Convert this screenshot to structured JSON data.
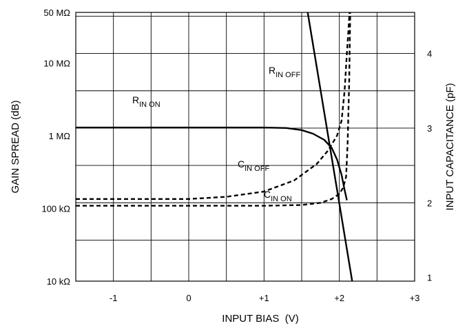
{
  "chart_data": {
    "type": "line",
    "xlabel": "INPUT BIAS  (V)",
    "ylabel_left": "GAIN SPREAD (dB)",
    "ylabel_right": "INPUT CAPACITANCE (pF)",
    "x_ticks": [
      {
        "value": -1,
        "label": "-1"
      },
      {
        "value": 0,
        "label": "0"
      },
      {
        "value": 1,
        "label": "+1"
      },
      {
        "value": 2,
        "label": "+2"
      },
      {
        "value": 3,
        "label": "+3"
      }
    ],
    "xlim": [
      -1.5,
      3.0
    ],
    "y_left_scale": "log",
    "y_left_ticks": [
      {
        "value": 10000,
        "label": "10 kΩ"
      },
      {
        "value": 100000,
        "label": "100 kΩ"
      },
      {
        "value": 1000000,
        "label": "1 MΩ"
      },
      {
        "value": 10000000,
        "label": "10 MΩ"
      },
      {
        "value": 50000000,
        "label": "50 MΩ"
      }
    ],
    "y_left_lim": [
      10000,
      50000000
    ],
    "y_right_ticks": [
      {
        "value": 1,
        "label": "1"
      },
      {
        "value": 2,
        "label": "2"
      },
      {
        "value": 3,
        "label": "3"
      },
      {
        "value": 4,
        "label": "4"
      }
    ],
    "y_right_lim": [
      0.95,
      4.55
    ],
    "grid": true,
    "series": [
      {
        "key": "r_in_on",
        "label_main": "R",
        "label_sub": "IN ON",
        "axis": "left",
        "style": "solid",
        "color": "#000000",
        "x": [
          -1.5,
          0,
          1.0,
          1.3,
          1.5,
          1.65,
          1.8,
          1.9,
          1.97,
          2.03,
          2.07,
          2.1
        ],
        "y": [
          1300000,
          1300000,
          1300000,
          1280000,
          1200000,
          1070000,
          880000,
          680000,
          470000,
          290000,
          180000,
          130000
        ]
      },
      {
        "key": "r_in_off",
        "label_main": "R",
        "label_sub": "IN OFF",
        "axis": "left",
        "style": "solid",
        "color": "#000000",
        "x": [
          1.58,
          2.17
        ],
        "y": [
          50000000,
          10000
        ]
      },
      {
        "key": "c_in_off",
        "label_main": "C",
        "label_sub": "IN OFF",
        "axis": "right",
        "style": "dashed",
        "color": "#000000",
        "x": [
          -1.5,
          -0.5,
          0,
          0.5,
          1.0,
          1.4,
          1.7,
          1.85,
          1.97,
          2.03,
          2.07,
          2.1,
          2.12,
          2.135
        ],
        "y": [
          2.05,
          2.05,
          2.05,
          2.08,
          2.15,
          2.3,
          2.52,
          2.7,
          2.9,
          3.1,
          3.5,
          4.0,
          4.3,
          4.55
        ]
      },
      {
        "key": "c_in_on",
        "label_main": "C",
        "label_sub": "IN ON",
        "axis": "right",
        "style": "dashed",
        "color": "#000000",
        "x": [
          -1.5,
          0,
          1.0,
          1.5,
          1.75,
          1.9,
          2.0,
          2.05,
          2.09,
          2.11,
          2.13,
          2.145
        ],
        "y": [
          1.96,
          1.96,
          1.96,
          1.97,
          2.0,
          2.05,
          2.12,
          2.2,
          2.35,
          2.8,
          3.6,
          4.55
        ]
      }
    ]
  }
}
